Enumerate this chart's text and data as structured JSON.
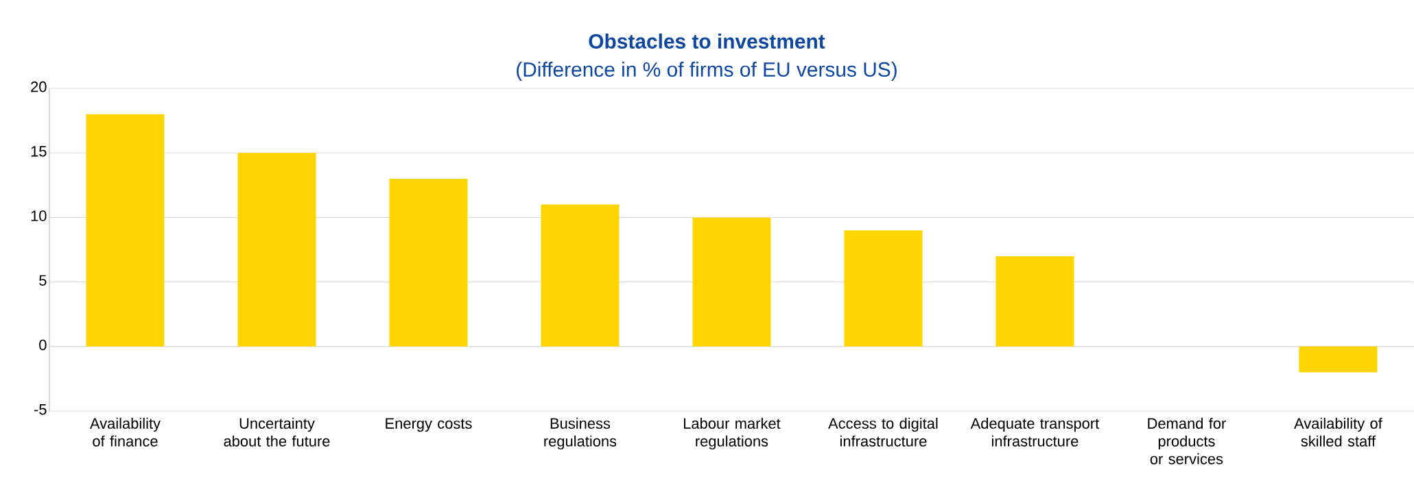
{
  "chart_data": {
    "type": "bar",
    "title": "Obstacles to investment",
    "subtitle": "(Difference in % of firms of EU versus US)",
    "categories": [
      "Availability of finance",
      "Uncertainty about the future",
      "Energy costs",
      "Business regulations",
      "Labour market regulations",
      "Access to digital infrastructure",
      "Adequate transport infrastructure",
      "Demand for products or services",
      "Availability of skilled staff"
    ],
    "values": [
      18,
      15,
      13,
      11,
      10,
      9,
      7,
      0,
      -2
    ],
    "color": "#ffd500",
    "ylim": [
      -5,
      20
    ],
    "yticks": [
      -5,
      0,
      5,
      10,
      15,
      20
    ],
    "grid": "y"
  }
}
